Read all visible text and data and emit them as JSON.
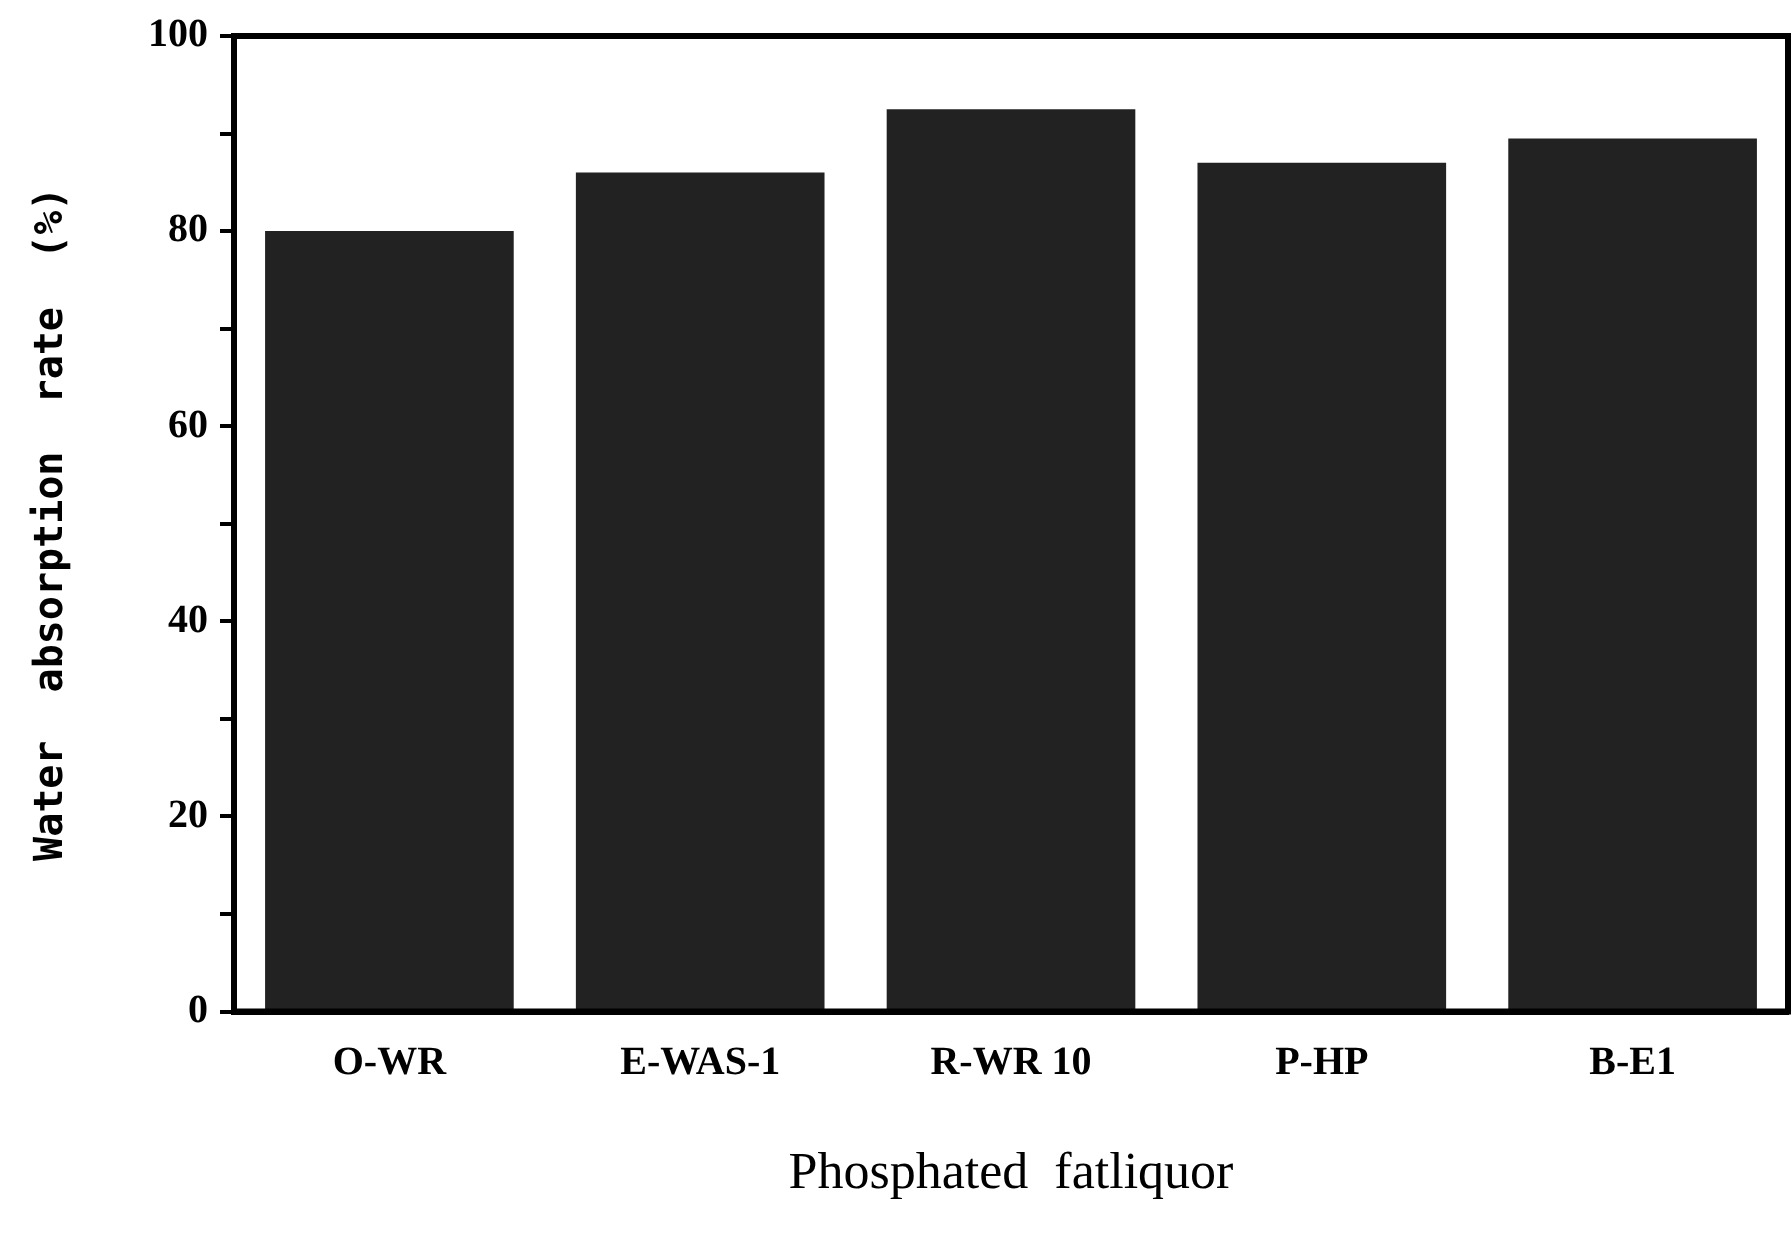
{
  "chart_data": {
    "type": "bar",
    "xlabel": "Phosphated  fatliquor",
    "ylabel": "Water  absorption  rate  (%)",
    "categories": [
      "O-WR",
      "E-WAS-1",
      "R-WR 10",
      "P-HP",
      "B-E1"
    ],
    "values": [
      80,
      86,
      92.5,
      87,
      89.5
    ],
    "color": "#222222",
    "ylim": [
      0,
      100
    ],
    "yticks": [
      0,
      {
        "value": 10,
        "label": null
      },
      20,
      {
        "value": 30,
        "label": null
      },
      40,
      {
        "value": 50,
        "label": null
      },
      60,
      {
        "value": 70,
        "label": null
      },
      80,
      {
        "value": 90,
        "label": null
      },
      100
    ],
    "grid": false
  }
}
